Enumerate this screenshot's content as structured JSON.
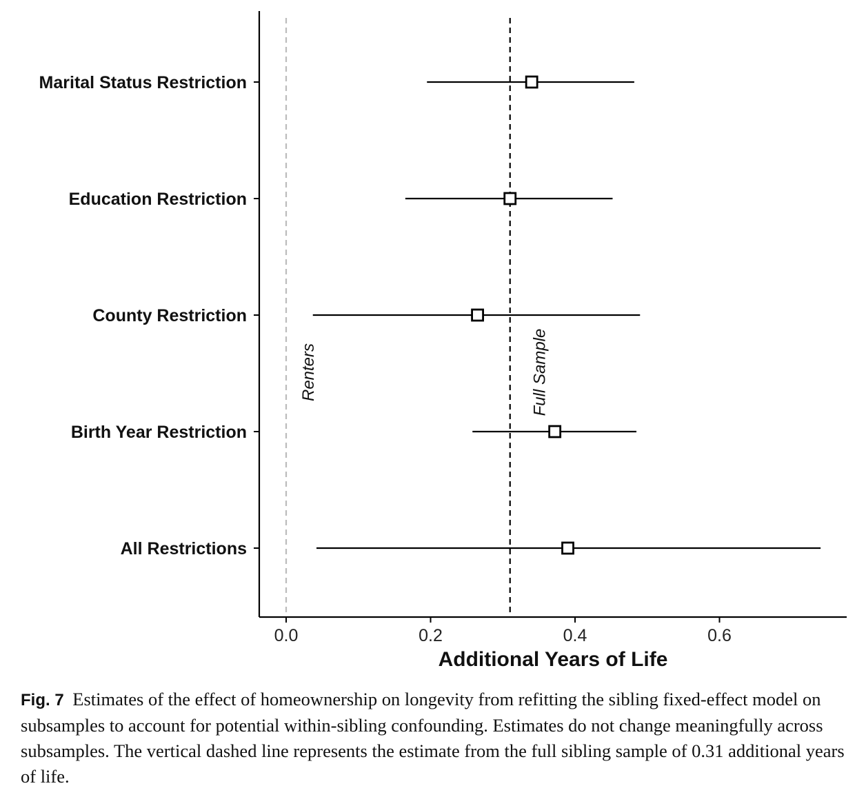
{
  "chart_data": {
    "type": "forest",
    "categories": [
      "Marital Status Restriction",
      "Education Restriction",
      "County Restriction",
      "Birth Year Restriction",
      "All Restrictions"
    ],
    "estimates": [
      0.34,
      0.31,
      0.265,
      0.372,
      0.39
    ],
    "ci_lower": [
      0.195,
      0.165,
      0.037,
      0.258,
      0.042
    ],
    "ci_upper": [
      0.482,
      0.452,
      0.49,
      0.485,
      0.74
    ],
    "xlabel": "Additional Years of Life",
    "ylabel": "",
    "xlim": [
      -0.037,
      0.775
    ],
    "xticks": [
      0.0,
      0.2,
      0.4,
      0.6
    ],
    "xtick_labels": [
      "0.0",
      "0.2",
      "0.4",
      "0.6"
    ],
    "reference_lines": [
      {
        "label": "Renters",
        "x": 0.0,
        "style": "dashed",
        "color": "#bbbbbb"
      },
      {
        "label": "Full Sample",
        "x": 0.31,
        "style": "dashed",
        "color": "#000000"
      }
    ],
    "grid": false,
    "legend": "none"
  },
  "caption": {
    "label": "Fig. 7",
    "text": "Estimates of the effect of homeownership on longevity from refitting the sibling fixed-effect model on subsamples to account for potential within-sibling confounding. Estimates do not change meaningfully across subsamples. The vertical dashed line represents the estimate from the full sibling sample of 0.31 additional years of life."
  }
}
